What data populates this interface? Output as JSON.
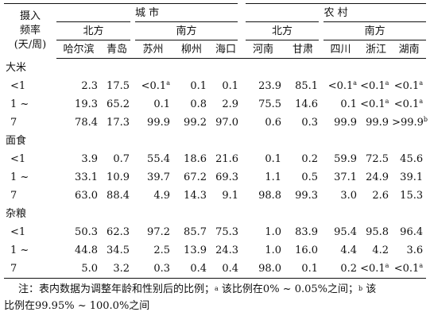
{
  "header": {
    "stub": [
      "摄入",
      "频率",
      "(天/周)"
    ],
    "urban": "城 市",
    "rural": "农 村",
    "urban_north": "北方",
    "urban_south": "南方",
    "rural_north": "北方",
    "rural_south": "南方",
    "regions": [
      "哈尔滨",
      "青岛",
      "苏州",
      "柳州",
      "海口",
      "河南",
      "甘肃",
      "四川",
      "浙江",
      "湖南"
    ]
  },
  "sections": [
    {
      "label": "大米",
      "rows": [
        {
          "freq": "<1",
          "values": [
            "2.3",
            "17.5",
            "<0.1",
            "0.1",
            "0.1",
            "23.9",
            "85.1",
            "<0.1",
            "<0.1",
            "<0.1"
          ],
          "marks": [
            "",
            "",
            "a",
            "",
            "",
            "",
            "",
            "a",
            "a",
            "a"
          ]
        },
        {
          "freq": "1 ~",
          "values": [
            "19.3",
            "65.2",
            "0.1",
            "0.8",
            "2.9",
            "75.5",
            "14.6",
            "0.1",
            "<0.1",
            "<0.1"
          ],
          "marks": [
            "",
            "",
            "",
            "",
            "",
            "",
            "",
            "",
            "a",
            "a"
          ]
        },
        {
          "freq": "7",
          "values": [
            "78.4",
            "17.3",
            "99.9",
            "99.2",
            "97.0",
            "0.6",
            "0.3",
            "99.9",
            "99.9",
            ">99.9"
          ],
          "marks": [
            "",
            "",
            "",
            "",
            "",
            "",
            "",
            "",
            "",
            "b"
          ]
        }
      ]
    },
    {
      "label": "面食",
      "rows": [
        {
          "freq": "<1",
          "values": [
            "3.9",
            "0.7",
            "55.4",
            "18.6",
            "21.6",
            "0.1",
            "0.2",
            "59.9",
            "72.5",
            "45.6"
          ],
          "marks": [
            "",
            "",
            "",
            "",
            "",
            "",
            "",
            "",
            "",
            ""
          ]
        },
        {
          "freq": "1 ~",
          "values": [
            "33.1",
            "10.9",
            "39.7",
            "67.2",
            "69.3",
            "1.1",
            "0.5",
            "37.1",
            "24.9",
            "39.1"
          ],
          "marks": [
            "",
            "",
            "",
            "",
            "",
            "",
            "",
            "",
            "",
            ""
          ]
        },
        {
          "freq": "7",
          "values": [
            "63.0",
            "88.4",
            "4.9",
            "14.3",
            "9.1",
            "98.8",
            "99.3",
            "3.0",
            "2.6",
            "15.3"
          ],
          "marks": [
            "",
            "",
            "",
            "",
            "",
            "",
            "",
            "",
            "",
            ""
          ]
        }
      ]
    },
    {
      "label": "杂粮",
      "rows": [
        {
          "freq": "<1",
          "values": [
            "50.3",
            "62.3",
            "97.2",
            "85.7",
            "75.3",
            "1.0",
            "83.9",
            "95.4",
            "95.8",
            "96.4"
          ],
          "marks": [
            "",
            "",
            "",
            "",
            "",
            "",
            "",
            "",
            "",
            ""
          ]
        },
        {
          "freq": "1 ~",
          "values": [
            "44.8",
            "34.5",
            "2.5",
            "13.9",
            "24.3",
            "1.0",
            "16.0",
            "4.4",
            "4.2",
            "3.6"
          ],
          "marks": [
            "",
            "",
            "",
            "",
            "",
            "",
            "",
            "",
            "",
            ""
          ]
        },
        {
          "freq": "7",
          "values": [
            "5.0",
            "3.2",
            "0.3",
            "0.4",
            "0.4",
            "98.0",
            "0.1",
            "0.2",
            "<0.1",
            "<0.1"
          ],
          "marks": [
            "",
            "",
            "",
            "",
            "",
            "",
            "",
            "",
            "a",
            "a"
          ]
        }
      ]
    }
  ],
  "note": {
    "line1_prefix": "注：表内数据为调整年龄和性别后的比例；",
    "mark_a": "a",
    "line1_mid": " 该比例在0% ~ 0.05%之间；",
    "mark_b": "b",
    "line1_end": " 该",
    "line2": "比例在99.95% ~ 100.0%之间"
  }
}
